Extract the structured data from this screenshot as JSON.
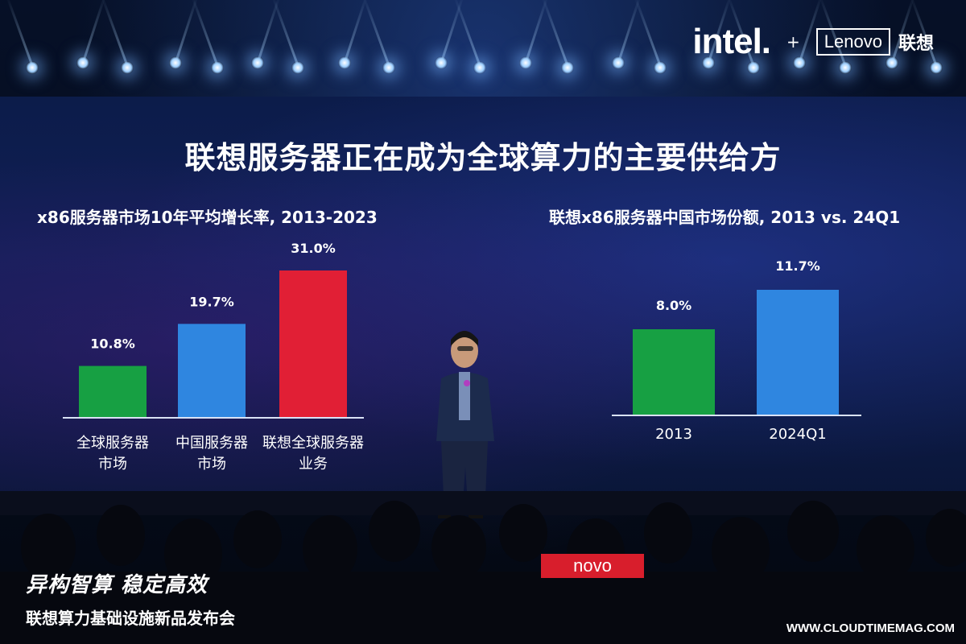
{
  "header": {
    "brand_intel": "intel.",
    "brand_plus": "+",
    "brand_lenovo": "Lenovo",
    "brand_lenovo_cn": "联想"
  },
  "slide": {
    "title": "联想服务器正在成为全球算力的主要供给方"
  },
  "chart_data": [
    {
      "type": "bar",
      "title": "x86服务器市场10年平均增长率, 2013-2023",
      "categories": [
        [
          "全球服务器",
          "市场"
        ],
        [
          "中国服务器",
          "市场"
        ],
        [
          "联想全球服务器",
          "业务"
        ]
      ],
      "values": [
        10.8,
        19.7,
        31.0
      ],
      "value_labels": [
        "10.8%",
        "19.7%",
        "31.0%"
      ],
      "colors": [
        "#17a043",
        "#2f86e0",
        "#e11f35"
      ],
      "ylim": [
        0,
        31.0
      ],
      "grid": false,
      "legend": "none"
    },
    {
      "type": "bar",
      "title": "联想x86服务器中国市场份额, 2013 vs. 24Q1",
      "categories": [
        [
          "2013"
        ],
        [
          "2024Q1"
        ]
      ],
      "values": [
        8.0,
        11.7
      ],
      "value_labels": [
        "8.0%",
        "11.7%"
      ],
      "colors": [
        "#17a043",
        "#2f86e0"
      ],
      "ylim": [
        0,
        11.7
      ],
      "grid": false,
      "legend": "none"
    }
  ],
  "footer": {
    "logo_tag": "novo",
    "slogan": "异构智算 稳定高效",
    "event_name": "联想算力基础设施新品发布会",
    "watermark": "WWW.CLOUDTIMEMAG.COM"
  }
}
